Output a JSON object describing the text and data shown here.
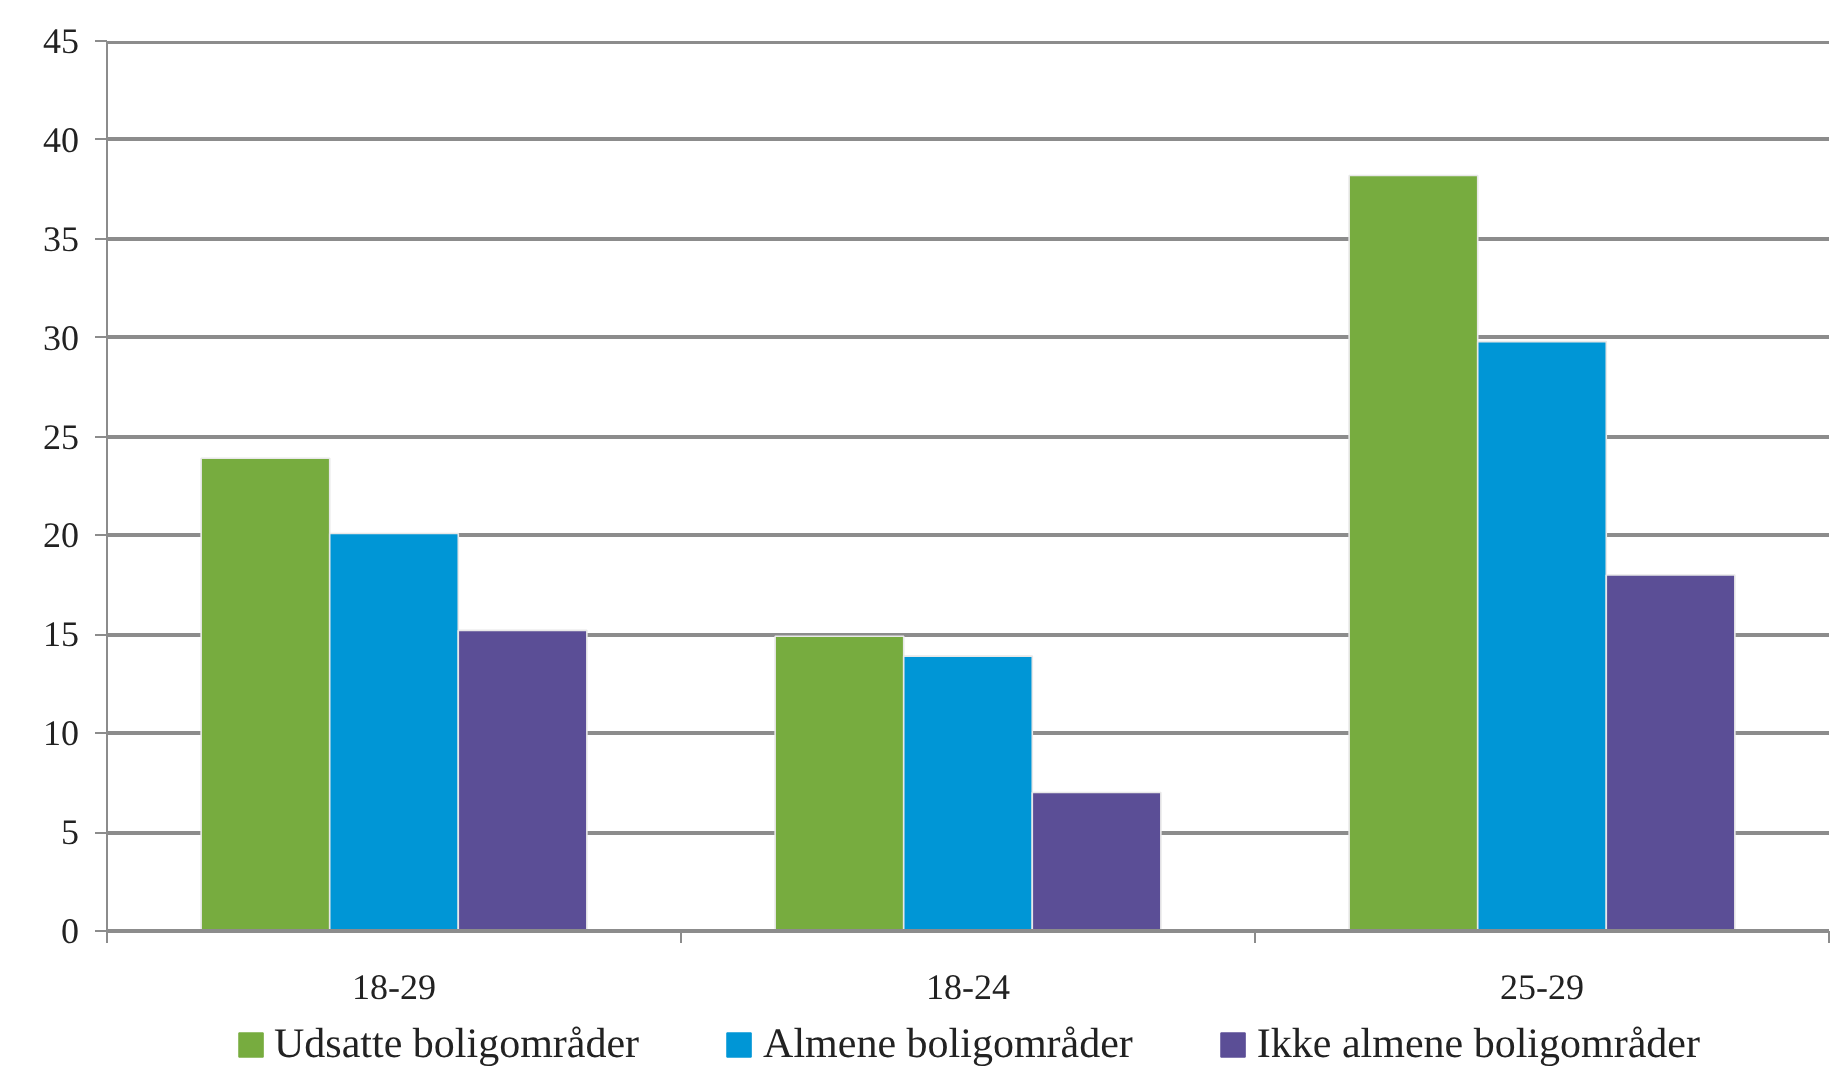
{
  "chart_data": {
    "type": "bar",
    "categories": [
      "18-29",
      "18-24",
      "25-29"
    ],
    "series": [
      {
        "name": "Udsatte boligområder",
        "color": "#77ac3f",
        "values": [
          23.9,
          14.9,
          38.2
        ]
      },
      {
        "name": "Almene boligområder",
        "color": "#0096d6",
        "values": [
          20.1,
          13.9,
          29.8
        ]
      },
      {
        "name": "Ikke almene boligområder",
        "color": "#5b4e96",
        "values": [
          15.2,
          7.0,
          18.0
        ]
      }
    ],
    "ylim": [
      0,
      45
    ],
    "yticks": [
      0,
      5,
      10,
      15,
      20,
      25,
      30,
      35,
      40,
      45
    ],
    "grid": "y",
    "legend": "bottom"
  }
}
